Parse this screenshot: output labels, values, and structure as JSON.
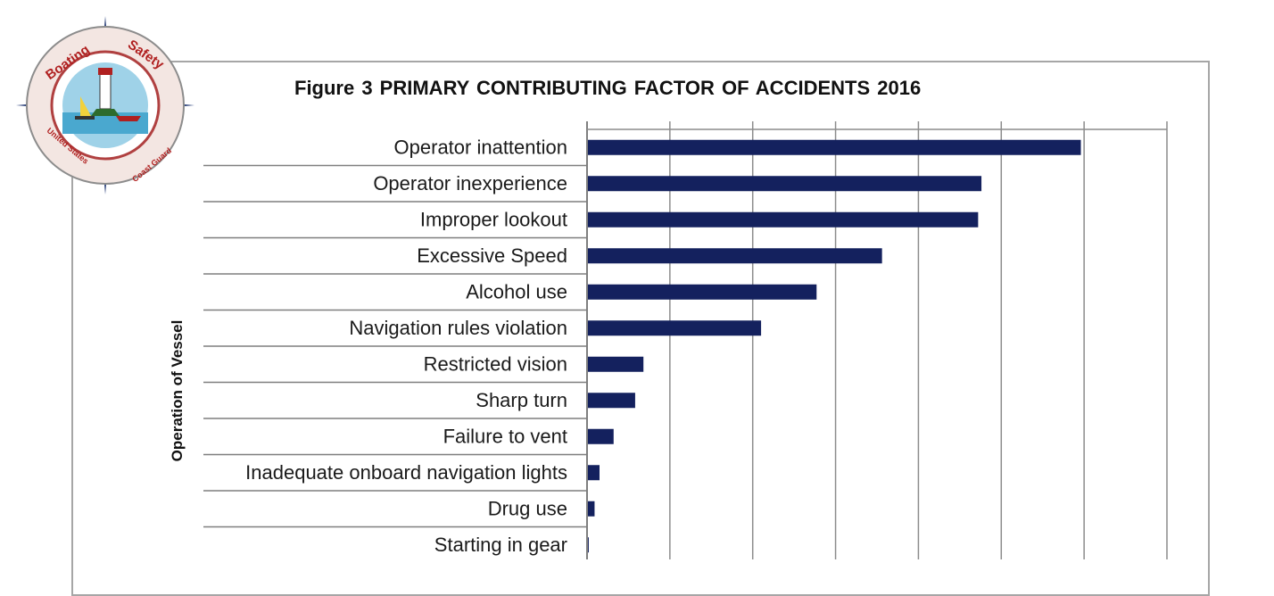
{
  "chart_data": {
    "type": "bar",
    "orientation": "horizontal",
    "title": "Figure 3 PRIMARY CONTRIBUTING  FACTOR OF ACCIDENTS  2016",
    "ylabel": "Operation of Vessel",
    "xlabel": "",
    "categories": [
      "Operator inattention",
      "Operator inexperience",
      "Improper lookout",
      "Excessive Speed",
      "Alcohol use",
      "Navigation rules violation",
      "Restricted vision",
      "Sharp turn",
      "Failure to vent",
      "Inadequate onboard navigation lights",
      "Drug use",
      "Starting in gear"
    ],
    "values": [
      595,
      475,
      471,
      355,
      276,
      209,
      67,
      57,
      31,
      14,
      8,
      1
    ],
    "xlim": [
      0,
      700
    ],
    "x_gridline_step": 100,
    "grid": true,
    "bar_color": "#14215e"
  },
  "logo": {
    "top_text": "Boating",
    "top_text_right": "Safety",
    "bottom_left": "United States",
    "bottom_right": "Coast Guard"
  }
}
